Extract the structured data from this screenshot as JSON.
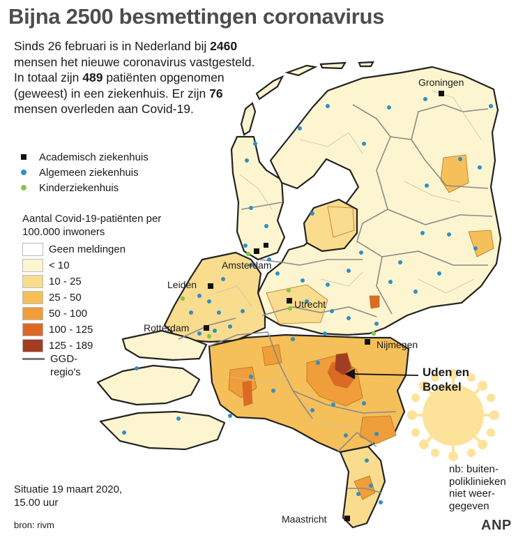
{
  "title": "Bijna 2500 besmettingen coronavirus",
  "intro": {
    "part1": "Sinds 26 februari is in Nederland bij",
    "num_cases": "2460",
    "part2": "mensen het nieuwe coronavirus vastgesteld. In totaal zijn",
    "num_hosp": "489",
    "part3": "patiënten opgenomen (geweest) in een ziekenhuis. Er zijn",
    "num_dead": "76",
    "part4": "mensen overleden aan Covid-19."
  },
  "legend_points": {
    "academic": "Academisch ziekenhuis",
    "general": "Algemeen ziekenhuis",
    "children": "Kinderziekenhuis"
  },
  "scale": {
    "title": "Aantal Covid-19-patiënten per 100.000 inwoners",
    "classes": [
      {
        "label": "Geen meldingen",
        "color": "#ffffff"
      },
      {
        "label": "< 10",
        "color": "#fdf5cf"
      },
      {
        "label": "10 - 25",
        "color": "#f9dc8e"
      },
      {
        "label": "25 - 50",
        "color": "#f5bf59"
      },
      {
        "label": "50 - 100",
        "color": "#ef9e3a"
      },
      {
        "label": "100 - 125",
        "color": "#dd6a24"
      },
      {
        "label": "125 - 189",
        "color": "#a23c22"
      }
    ],
    "ggd_label": "GGD-regio's"
  },
  "cities": {
    "groningen": "Groningen",
    "amsterdam": "Amsterdam",
    "leiden": "Leiden",
    "utrecht": "Utrecht",
    "rotterdam": "Rotterdam",
    "nijmegen": "Nijmegen",
    "maastricht": "Maastricht"
  },
  "callout": {
    "line1": "Uden en",
    "line2": "Boekel"
  },
  "nb_note": [
    "nb: buiten-",
    "poliklinieken",
    "niet weer-",
    "gegeven"
  ],
  "situatie": [
    "Situatie 19 maart 2020,",
    "15.00 uur"
  ],
  "source": "bron: rivm",
  "agency": "ANP",
  "colors": {
    "title": "#4d4d4d",
    "academic": "#111111",
    "general": "#2d8fc9",
    "children": "#86c64a",
    "ggd_line": "#777777",
    "virus": "#fde29a"
  }
}
